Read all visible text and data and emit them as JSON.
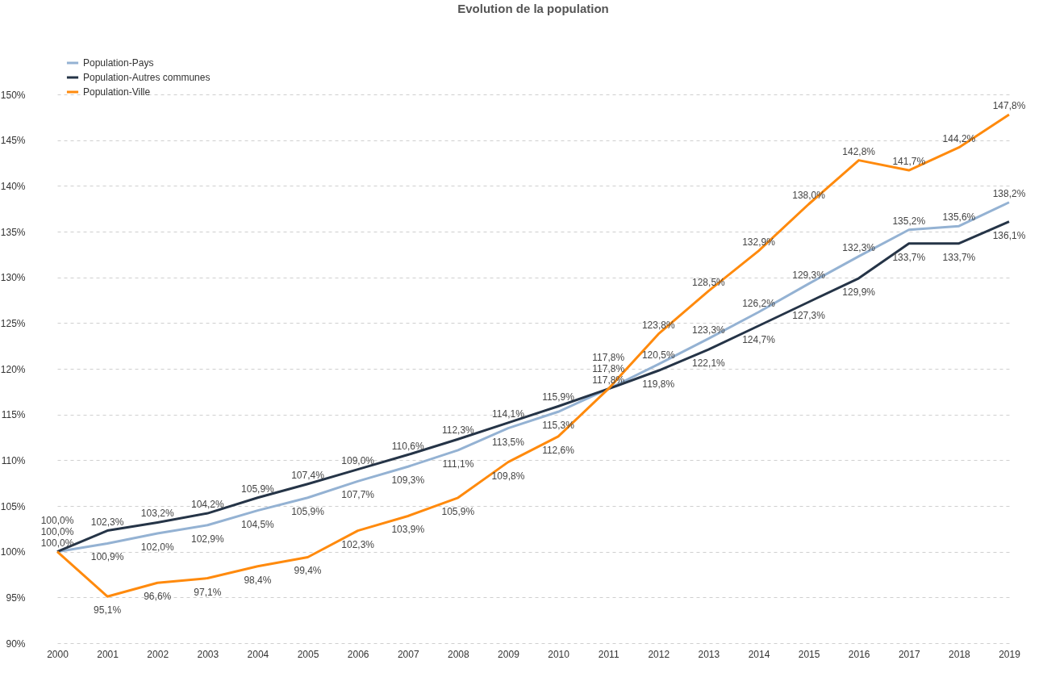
{
  "chart_data": {
    "type": "line",
    "title": "Evolution de la population",
    "categories": [
      "2000",
      "2001",
      "2002",
      "2003",
      "2004",
      "2005",
      "2006",
      "2007",
      "2008",
      "2009",
      "2010",
      "2011",
      "2012",
      "2013",
      "2014",
      "2015",
      "2016",
      "2017",
      "2018",
      "2019"
    ],
    "series": [
      {
        "name": "Population-Pays",
        "color": "#94b2d3",
        "values": [
          100.0,
          100.9,
          102.0,
          102.9,
          104.5,
          105.9,
          107.7,
          109.3,
          111.1,
          113.5,
          115.3,
          117.8,
          120.5,
          123.3,
          126.2,
          129.3,
          132.3,
          135.2,
          135.6,
          138.2
        ],
        "value_labels": [
          "100,0%",
          "100,9%",
          "102,0%",
          "102,9%",
          "104,5%",
          "105,9%",
          "107,7%",
          "109,3%",
          "111,1%",
          "113,5%",
          "115,3%",
          "117,8%",
          "120,5%",
          "123,3%",
          "126,2%",
          "129,3%",
          "132,3%",
          "135,2%",
          "135,6%",
          "138,2%"
        ]
      },
      {
        "name": "Population-Autres communes",
        "color": "#253447",
        "values": [
          100.0,
          102.3,
          103.2,
          104.2,
          105.9,
          107.4,
          109.0,
          110.6,
          112.3,
          114.1,
          115.9,
          117.8,
          119.8,
          122.1,
          124.7,
          127.3,
          129.9,
          133.7,
          133.7,
          136.1
        ],
        "value_labels": [
          "100,0%",
          "102,3%",
          "103,2%",
          "104,2%",
          "105,9%",
          "107,4%",
          "109,0%",
          "110,6%",
          "112,3%",
          "114,1%",
          "115,9%",
          "117,8%",
          "119,8%",
          "122,1%",
          "124,7%",
          "127,3%",
          "129,9%",
          "133,7%",
          "133,7%",
          "136,1%"
        ]
      },
      {
        "name": "Population-Ville",
        "color": "#ff8a0d",
        "values": [
          100.0,
          95.1,
          96.6,
          97.1,
          98.4,
          99.4,
          102.3,
          103.9,
          105.9,
          109.8,
          112.6,
          117.8,
          123.8,
          128.5,
          132.9,
          138.0,
          142.8,
          141.7,
          144.2,
          147.8
        ],
        "value_labels": [
          "100,0%",
          "95,1%",
          "96,6%",
          "97,1%",
          "98,4%",
          "99,4%",
          "102,3%",
          "103,9%",
          "105,9%",
          "109,8%",
          "112,6%",
          "117,8%",
          "123,8%",
          "128,5%",
          "132,9%",
          "138,0%",
          "142,8%",
          "141,7%",
          "144,2%",
          "147,8%"
        ]
      }
    ],
    "ylim": [
      90,
      150
    ],
    "yticks": [
      {
        "value": 90,
        "label": "90%"
      },
      {
        "value": 95,
        "label": "95%"
      },
      {
        "value": 100,
        "label": "100%"
      },
      {
        "value": 105,
        "label": "105%"
      },
      {
        "value": 110,
        "label": "110%"
      },
      {
        "value": 115,
        "label": "115%"
      },
      {
        "value": 120,
        "label": "120%"
      },
      {
        "value": 125,
        "label": "125%"
      },
      {
        "value": 130,
        "label": "130%"
      },
      {
        "value": 135,
        "label": "135%"
      },
      {
        "value": 140,
        "label": "140%"
      },
      {
        "value": 145,
        "label": "145%"
      },
      {
        "value": 150,
        "label": "150%"
      }
    ],
    "grid": "y",
    "legend": "top left"
  }
}
